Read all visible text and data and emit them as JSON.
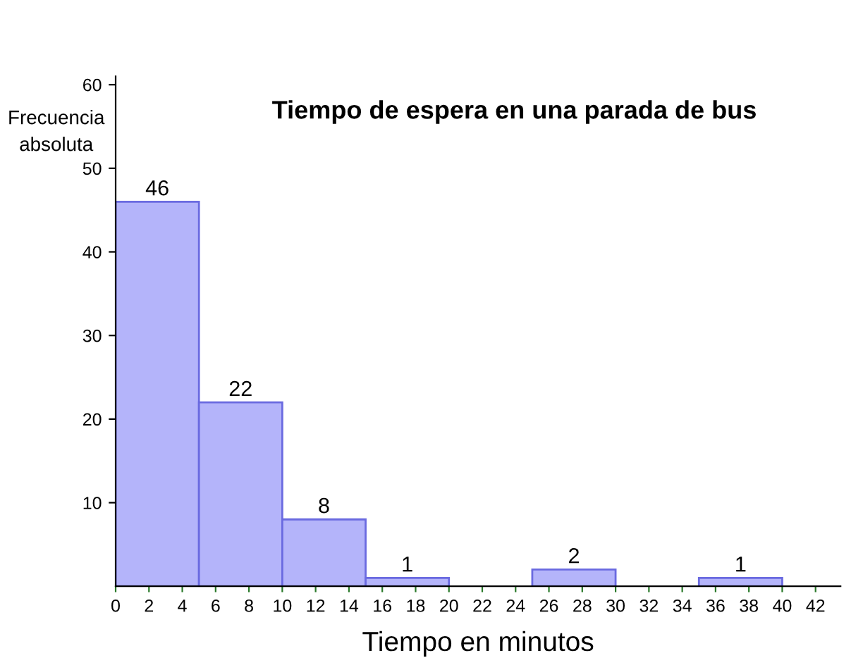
{
  "chart_data": {
    "type": "histogram",
    "title": "Tiempo de espera en una parada de bus",
    "xlabel": "Tiempo en minutos",
    "ylabel": "Frecuencia\nabsoluta",
    "bins": [
      0,
      5,
      10,
      15,
      20,
      25,
      30,
      35,
      40
    ],
    "values": [
      46,
      22,
      8,
      1,
      0,
      2,
      0,
      1
    ],
    "value_labels": [
      "46",
      "22",
      "8",
      "1",
      null,
      "2",
      null,
      "1"
    ],
    "color": "#b4b4fa",
    "xlim": [
      0,
      43.5
    ],
    "ylim": [
      0,
      61
    ],
    "xticks": [
      0,
      2,
      4,
      6,
      8,
      10,
      12,
      14,
      16,
      18,
      20,
      22,
      24,
      26,
      28,
      30,
      32,
      34,
      36,
      38,
      40,
      42
    ],
    "yticks": [
      10,
      20,
      30,
      40,
      50,
      60
    ],
    "grid": false,
    "legend": false
  }
}
